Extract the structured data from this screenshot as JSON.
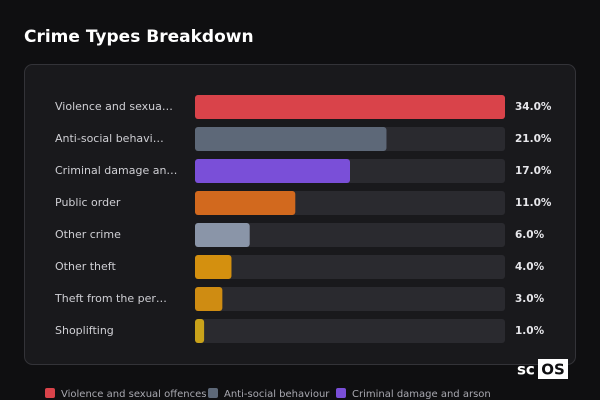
{
  "chart_data": {
    "type": "hbar",
    "title": "Crime Types Breakdown",
    "categories": [
      "Violence and sexua…",
      "Anti-social behavi…",
      "Criminal damage an…",
      "Public order",
      "Other crime",
      "Other theft",
      "Theft from the per…",
      "Shoplifting"
    ],
    "values": [
      34,
      21,
      17,
      11,
      6,
      4,
      3,
      1
    ],
    "value_labels": [
      "34.0%",
      "21.0%",
      "17.0%",
      "11.0%",
      "6.0%",
      "4.0%",
      "3.0%",
      "1.0%"
    ],
    "colors": [
      "#d9434a",
      "#5d6878",
      "#7a4fd8",
      "#d2691e",
      "#8a95a8",
      "#d4900f",
      "#cf8c12",
      "#c9a21a"
    ],
    "xlim": [
      0,
      34
    ],
    "legend": [
      {
        "name": "Violence and sexual offences",
        "color": "#d9434a"
      },
      {
        "name": "Anti-social behaviour",
        "color": "#5d6878"
      },
      {
        "name": "Criminal damage and arson",
        "color": "#7a4fd8"
      }
    ],
    "logo": {
      "left": "sc",
      "right": "OS"
    }
  }
}
